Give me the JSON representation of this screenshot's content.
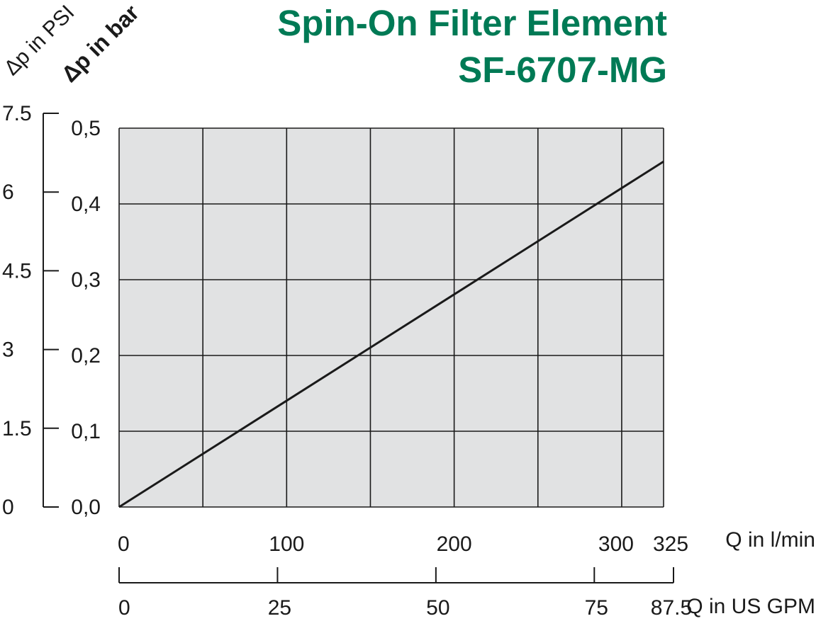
{
  "chart_data": {
    "type": "line",
    "title": "Spin-On Filter Element",
    "subtitle": "SF-6707-MG",
    "title_color": "#007a55",
    "y_label_bar": "Δp in bar",
    "y_label_psi": "Δp in PSI",
    "x_label_lmin": "Q in l/min",
    "x_label_gpm": "Q in US GPM",
    "xlim": [
      0,
      325
    ],
    "ylim": [
      0,
      0.5
    ],
    "x_grid_values": [
      0,
      50,
      100,
      150,
      200,
      250,
      300,
      325
    ],
    "y_grid_values": [
      0,
      0.1,
      0.2,
      0.3,
      0.4,
      0.5
    ],
    "x_ticks_lmin": [
      {
        "value": 0,
        "label": "0"
      },
      {
        "value": 100,
        "label": "100"
      },
      {
        "value": 200,
        "label": "200"
      },
      {
        "value": 300,
        "label": "300"
      },
      {
        "value": 325,
        "label": "325"
      }
    ],
    "x_ticks_gpm": [
      {
        "value": 0,
        "label": "0"
      },
      {
        "value": 25,
        "label": "25"
      },
      {
        "value": 50,
        "label": "50"
      },
      {
        "value": 75,
        "label": "75"
      },
      {
        "value": 87.5,
        "label": "87.5"
      }
    ],
    "gpm_max": 87.5,
    "y_ticks_bar": [
      {
        "value": 0,
        "label": "0,0"
      },
      {
        "value": 0.1,
        "label": "0,1"
      },
      {
        "value": 0.2,
        "label": "0,2"
      },
      {
        "value": 0.3,
        "label": "0,3"
      },
      {
        "value": 0.4,
        "label": "0,4"
      },
      {
        "value": 0.5,
        "label": "0,5"
      }
    ],
    "y_ticks_psi": [
      {
        "value": 0,
        "label": "0"
      },
      {
        "value": 1.5,
        "label": "1.5"
      },
      {
        "value": 3,
        "label": "3"
      },
      {
        "value": 4.5,
        "label": "4.5"
      },
      {
        "value": 6,
        "label": "6"
      },
      {
        "value": 7.5,
        "label": "7.5"
      }
    ],
    "psi_max": 7.5,
    "grid": true,
    "plot_background": "#e1e2e3",
    "series": [
      {
        "color": "#1a1a1a",
        "points": [
          {
            "x": 0,
            "y": 0.0
          },
          {
            "x": 325,
            "y": 0.456
          }
        ]
      }
    ]
  }
}
